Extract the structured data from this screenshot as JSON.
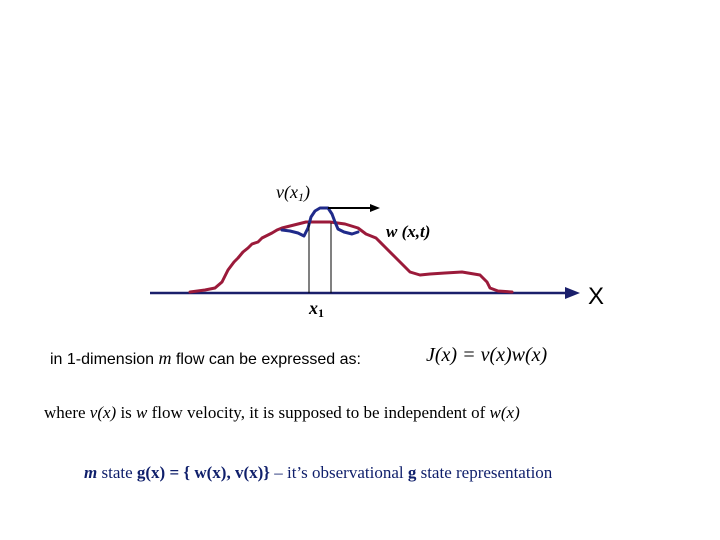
{
  "diagram": {
    "label_velocity_main": "v(x",
    "label_velocity_sub": "1",
    "label_velocity_close": ")",
    "label_density": "w (x,t)",
    "label_point_main": "x",
    "label_point_sub": "1",
    "label_axis": "X"
  },
  "text": {
    "line1_prefix": "in 1-dimension ",
    "line1_m": "m",
    "line1_suffix": " flow can be expressed as:",
    "formula": "J(x) = v(x)w(x)",
    "line2_a": "where ",
    "line2_v": "v(x)",
    "line2_b": " is ",
    "line2_w": "w",
    "line2_c": " flow velocity,  it is supposed to be independent of ",
    "line2_wx": "w(x)",
    "line3_m": "m",
    "line3_a": " state ",
    "line3_g": "g(x) = { w(x), v(x)}",
    "line3_b": " –  it’s observational ",
    "line3_g2": "g",
    "line3_c": " state representation"
  },
  "colors": {
    "curve": "#9b1a3a",
    "bump": "#1f2a8a",
    "axis": "#1a1f6b",
    "text_navy": "#0f1f6b"
  }
}
